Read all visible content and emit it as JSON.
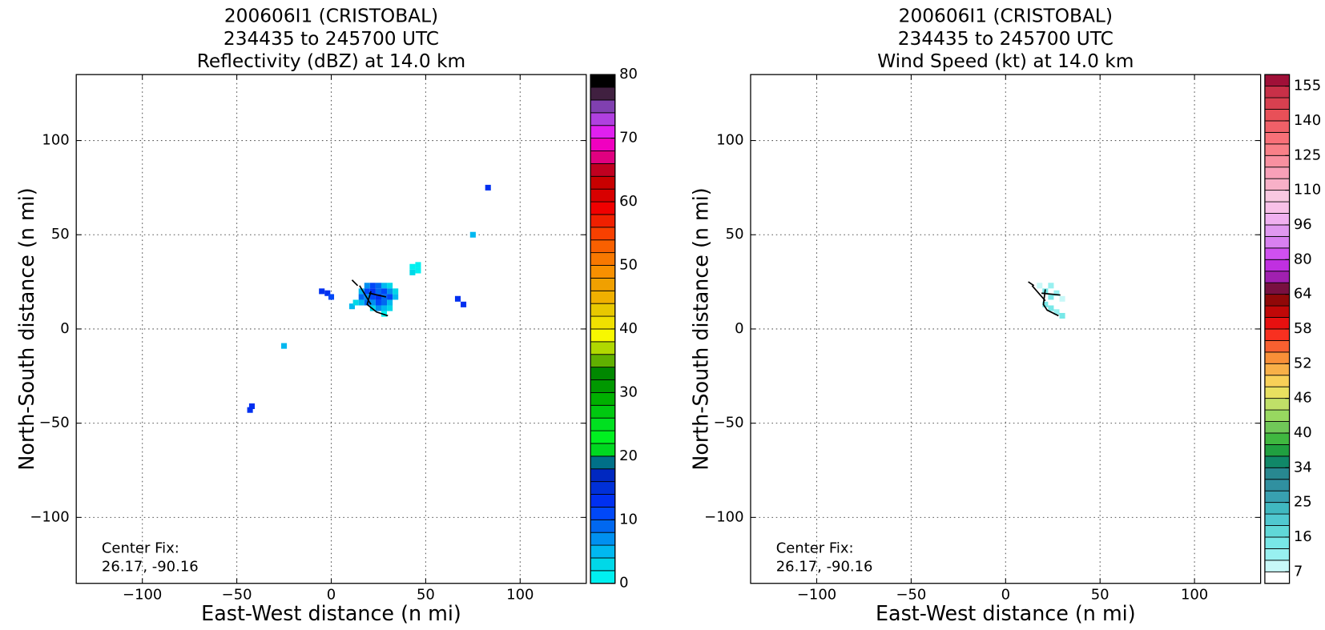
{
  "chart_data": [
    {
      "type": "heatmap",
      "title": [
        "200606I1 (CRISTOBAL)",
        "234435 to 245700 UTC",
        "Reflectivity (dBZ) at 14.0 km"
      ],
      "xlabel": "East-West distance (n mi)",
      "ylabel": "North-South distance (n mi)",
      "annotation": [
        "Center Fix:",
        "26.17, -90.16"
      ],
      "xlim": [
        -135,
        135
      ],
      "ylim": [
        -135,
        135
      ],
      "xticks": [
        {
          "value": -100,
          "label": "−100"
        },
        {
          "value": -50,
          "label": "−50"
        },
        0,
        50,
        100
      ],
      "yticks": [
        {
          "value": -100,
          "label": "−100"
        },
        {
          "value": -50,
          "label": "−50"
        },
        0,
        50,
        100
      ],
      "grid": true,
      "cell_size": 3,
      "cells": [
        [
          19,
          23,
          6
        ],
        [
          22,
          23,
          10
        ],
        [
          25,
          23,
          8
        ],
        [
          28,
          23,
          4
        ],
        [
          31,
          23,
          2
        ],
        [
          16,
          20,
          4
        ],
        [
          19,
          20,
          10
        ],
        [
          22,
          20,
          12
        ],
        [
          25,
          20,
          8
        ],
        [
          28,
          20,
          10
        ],
        [
          31,
          20,
          6
        ],
        [
          34,
          20,
          2
        ],
        [
          16,
          17,
          8
        ],
        [
          19,
          17,
          6
        ],
        [
          22,
          17,
          10
        ],
        [
          25,
          17,
          12
        ],
        [
          28,
          17,
          8
        ],
        [
          31,
          17,
          10
        ],
        [
          34,
          17,
          4
        ],
        [
          16,
          14,
          4
        ],
        [
          19,
          14,
          8
        ],
        [
          22,
          14,
          6
        ],
        [
          25,
          14,
          10
        ],
        [
          28,
          14,
          8
        ],
        [
          31,
          14,
          4
        ],
        [
          22,
          11,
          2
        ],
        [
          25,
          11,
          6
        ],
        [
          28,
          11,
          4
        ],
        [
          31,
          11,
          2
        ],
        [
          28,
          8,
          0
        ],
        [
          -5,
          20,
          12
        ],
        [
          -2,
          19,
          12
        ],
        [
          0,
          17,
          10
        ],
        [
          11,
          12,
          4
        ],
        [
          13,
          14,
          2
        ],
        [
          43,
          33,
          0
        ],
        [
          46,
          31,
          0
        ],
        [
          43,
          30,
          2
        ],
        [
          46,
          34,
          0
        ],
        [
          67,
          16,
          12
        ],
        [
          70,
          13,
          12
        ],
        [
          83,
          75,
          12
        ],
        [
          75,
          50,
          4
        ],
        [
          -25,
          -9,
          4
        ],
        [
          -43,
          -43,
          12
        ],
        [
          -42,
          -41,
          12
        ]
      ],
      "track": {
        "x": [
          11,
          14,
          null,
          15,
          21,
          null,
          20,
          29,
          null,
          21,
          19,
          24,
          30
        ],
        "y": [
          26,
          23,
          null,
          23,
          13,
          null,
          19,
          17,
          null,
          20,
          13,
          9,
          7
        ]
      },
      "colorbar": {
        "bounds": [
          0,
          2,
          4,
          6,
          8,
          10,
          12,
          14,
          16,
          18,
          20,
          22,
          24,
          26,
          28,
          30,
          32,
          34,
          36,
          38,
          40,
          42,
          44,
          46,
          48,
          50,
          52,
          54,
          56,
          58,
          60,
          62,
          64,
          66,
          68,
          70,
          72,
          74,
          76,
          78,
          80
        ],
        "colors": [
          "#00f0f0",
          "#00d8e8",
          "#00b8f0",
          "#0090f0",
          "#0068f0",
          "#0048f8",
          "#0030f0",
          "#0030d8",
          "#0028c0",
          "#007088",
          "#00d820",
          "#00f020",
          "#00e020",
          "#00c810",
          "#00b000",
          "#009800",
          "#008800",
          "#60b000",
          "#b0d800",
          "#f8f800",
          "#f0e000",
          "#e8c800",
          "#f0b000",
          "#f0a000",
          "#f89000",
          "#f87800",
          "#f86000",
          "#f84000",
          "#f02000",
          "#f00000",
          "#d80000",
          "#c80000",
          "#c00020",
          "#e00080",
          "#f000c0",
          "#e020f0",
          "#b040e0",
          "#8040b0",
          "#402040",
          "#000000"
        ],
        "ticks": [
          0,
          10,
          20,
          30,
          40,
          50,
          60,
          70,
          80
        ]
      }
    },
    {
      "type": "heatmap",
      "title": [
        "200606I1 (CRISTOBAL)",
        "234435 to 245700 UTC",
        "Wind Speed (kt) at 14.0 km"
      ],
      "xlabel": "East-West distance (n mi)",
      "ylabel": "North-South distance (n mi)",
      "annotation": [
        "Center Fix:",
        "26.17, -90.16"
      ],
      "xlim": [
        -135,
        135
      ],
      "ylim": [
        -135,
        135
      ],
      "xticks": [
        {
          "value": -100,
          "label": "−100"
        },
        {
          "value": -50,
          "label": "−50"
        },
        0,
        50,
        100
      ],
      "yticks": [
        {
          "value": -100,
          "label": "−100"
        },
        {
          "value": -50,
          "label": "−50"
        },
        0,
        50,
        100
      ],
      "grid": true,
      "cell_size": 3,
      "cells": [
        [
          24,
          23,
          10
        ],
        [
          21,
          20,
          13
        ],
        [
          27,
          19,
          10
        ],
        [
          24,
          17,
          13
        ],
        [
          30,
          16,
          7
        ],
        [
          21,
          13,
          13
        ],
        [
          24,
          11,
          13
        ],
        [
          27,
          9,
          10
        ],
        [
          30,
          7,
          13
        ],
        [
          18,
          23,
          7
        ]
      ],
      "track": {
        "x": [
          12,
          15,
          null,
          14,
          21,
          null,
          19,
          29,
          null,
          21,
          20,
          22,
          28
        ],
        "y": [
          25,
          23,
          null,
          23,
          15,
          null,
          19,
          18,
          null,
          21,
          13,
          10,
          7
        ]
      },
      "colorbar": {
        "bounds": [
          0,
          7,
          10,
          13,
          16,
          19,
          22,
          25,
          28,
          31,
          34,
          36,
          38,
          40,
          42,
          44,
          46,
          48,
          50,
          52,
          54,
          56,
          58,
          60,
          62,
          64,
          69,
          75,
          80,
          85,
          91,
          96,
          101,
          105,
          110,
          115,
          120,
          125,
          130,
          135,
          140,
          145,
          150,
          155,
          160
        ],
        "colors": [
          "#ffffff",
          "#c8f8f8",
          "#98f0f0",
          "#78e8e8",
          "#60d8d8",
          "#50c8d0",
          "#40b8c0",
          "#38a0b0",
          "#3090a0",
          "#288890",
          "#108868",
          "#20a040",
          "#40b840",
          "#70c858",
          "#98d860",
          "#c0e068",
          "#e8e060",
          "#f8d058",
          "#f8b048",
          "#f89038",
          "#f86030",
          "#f83020",
          "#e81010",
          "#c00808",
          "#900808",
          "#781040",
          "#a020b0",
          "#c030e0",
          "#d050f0",
          "#d880f0",
          "#e098f0",
          "#f0b0f0",
          "#f8c0e8",
          "#f8c8e0",
          "#f8b0c8",
          "#f8a0b8",
          "#f890a0",
          "#f88088",
          "#f87078",
          "#f06068",
          "#e85058",
          "#d84050",
          "#c83048",
          "#a01038"
        ],
        "ticks": [
          7,
          16,
          25,
          34,
          40,
          46,
          52,
          58,
          64,
          80,
          96,
          110,
          125,
          140,
          155
        ]
      }
    }
  ]
}
